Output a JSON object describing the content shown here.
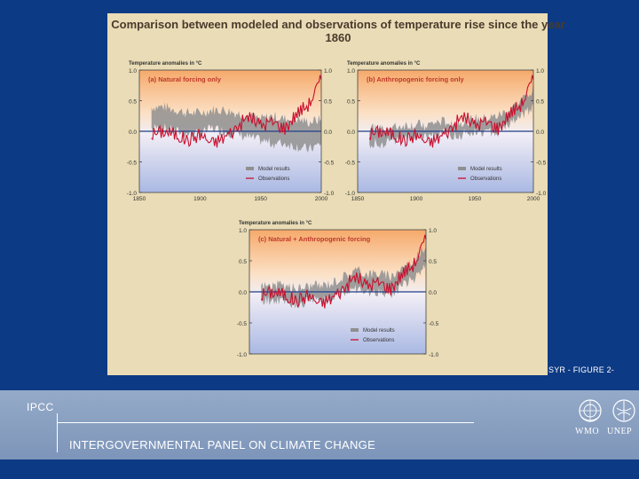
{
  "title": "Comparison between modeled and observations of temperature rise since the year 1860",
  "figure_label": "SYR - FIGURE 2-",
  "footer": {
    "acronym": "IPCC",
    "organization": "INTERGOVERNMENTAL PANEL ON CLIMATE CHANGE",
    "logos": [
      "WMO",
      "UNEP"
    ]
  },
  "colors": {
    "background": "#0d3a84",
    "panel": "#e9dcb6",
    "observations": "#c8102e",
    "model": "#8a8a8a",
    "zero_line": "#1f3f8a"
  },
  "chart_data": [
    {
      "type": "line",
      "panel_label": "(a) Natural forcing only",
      "ylabel": "Temperature anomalies in °C",
      "ylim": [
        -1.0,
        1.0
      ],
      "yticks": [
        "1.0",
        "0.5",
        "0.0",
        "-0.5",
        "-1.0"
      ],
      "yticks_right": [
        "1.0",
        "0.5",
        "0.0",
        "-0.5",
        "-1.0"
      ],
      "xlim": [
        1850,
        2000
      ],
      "xticks": [
        "1850",
        "1900",
        "1950",
        "2000"
      ],
      "legend": [
        "Model results",
        "Observations"
      ],
      "x": [
        1860,
        1870,
        1880,
        1890,
        1900,
        1910,
        1920,
        1930,
        1940,
        1950,
        1960,
        1970,
        1980,
        1990,
        2000
      ],
      "series": [
        {
          "name": "Model results",
          "low": [
            0.05,
            0.05,
            0.0,
            -0.05,
            -0.05,
            0.05,
            0.0,
            -0.05,
            -0.1,
            -0.15,
            -0.2,
            -0.2,
            -0.25,
            -0.3,
            -0.2
          ],
          "high": [
            0.4,
            0.4,
            0.35,
            0.3,
            0.3,
            0.35,
            0.35,
            0.3,
            0.25,
            0.2,
            0.25,
            0.2,
            0.2,
            0.15,
            0.2
          ]
        },
        {
          "name": "Observations",
          "values": [
            -0.05,
            0.0,
            -0.05,
            -0.15,
            -0.05,
            -0.2,
            -0.1,
            0.05,
            0.25,
            0.1,
            0.15,
            0.05,
            0.3,
            0.45,
            0.85
          ]
        }
      ]
    },
    {
      "type": "line",
      "panel_label": "(b) Anthropogenic forcing only",
      "ylabel": "Temperature anomalies in °C",
      "ylim": [
        -1.0,
        1.0
      ],
      "yticks": [
        "1.0",
        "0.5",
        "0.0",
        "-0.5",
        "-1.0"
      ],
      "yticks_right": [
        "1.0",
        "0.5",
        "0.0",
        "-0.5",
        "-1.0"
      ],
      "xlim": [
        1850,
        2000
      ],
      "xticks": [
        "1850",
        "1900",
        "1950",
        "2000"
      ],
      "legend": [
        "Model results",
        "Observations"
      ],
      "x": [
        1860,
        1870,
        1880,
        1890,
        1900,
        1910,
        1920,
        1930,
        1940,
        1950,
        1960,
        1970,
        1980,
        1990,
        2000
      ],
      "series": [
        {
          "name": "Model results",
          "low": [
            -0.2,
            -0.2,
            -0.15,
            -0.15,
            -0.1,
            -0.1,
            -0.05,
            -0.05,
            -0.05,
            0.0,
            0.0,
            0.0,
            0.1,
            0.25,
            0.4
          ],
          "high": [
            0.05,
            0.05,
            0.05,
            0.1,
            0.1,
            0.1,
            0.15,
            0.15,
            0.15,
            0.2,
            0.2,
            0.25,
            0.35,
            0.5,
            0.7
          ]
        },
        {
          "name": "Observations",
          "values": [
            -0.05,
            0.0,
            -0.05,
            -0.15,
            -0.05,
            -0.2,
            -0.1,
            0.05,
            0.25,
            0.1,
            0.15,
            0.05,
            0.3,
            0.45,
            0.85
          ]
        }
      ]
    },
    {
      "type": "line",
      "panel_label": "(c) Natural + Anthropogenic forcing",
      "ylabel": "Temperature anomalies in °C",
      "ylim": [
        -1.0,
        1.0
      ],
      "yticks": [
        "1.0",
        "0.5",
        "0.0",
        "-0.5",
        "-1.0"
      ],
      "yticks_right": [
        "1.0",
        "0.5",
        "0.0",
        "-0.5",
        "-1.0"
      ],
      "xlim": [
        1850,
        2000
      ],
      "xticks": [],
      "legend": [
        "Model results",
        "Observations"
      ],
      "x": [
        1860,
        1870,
        1880,
        1890,
        1900,
        1910,
        1920,
        1930,
        1940,
        1950,
        1960,
        1970,
        1980,
        1990,
        2000
      ],
      "series": [
        {
          "name": "Model results",
          "low": [
            -0.15,
            -0.15,
            -0.15,
            -0.2,
            -0.15,
            -0.15,
            -0.1,
            0.0,
            0.05,
            0.0,
            0.0,
            -0.05,
            0.1,
            0.2,
            0.45
          ],
          "high": [
            0.1,
            0.1,
            0.1,
            0.05,
            0.1,
            0.1,
            0.15,
            0.25,
            0.35,
            0.3,
            0.3,
            0.25,
            0.4,
            0.5,
            0.75
          ]
        },
        {
          "name": "Observations",
          "values": [
            -0.05,
            0.0,
            -0.05,
            -0.15,
            -0.05,
            -0.2,
            -0.1,
            0.05,
            0.25,
            0.1,
            0.15,
            0.05,
            0.3,
            0.45,
            0.85
          ]
        }
      ]
    }
  ]
}
